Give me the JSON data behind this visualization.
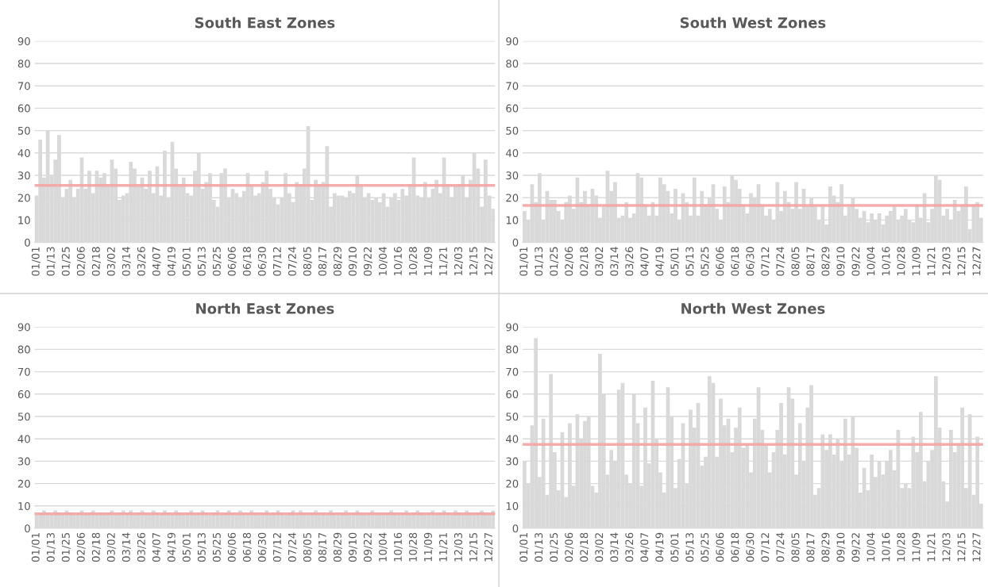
{
  "chart_data": [
    {
      "type": "bar",
      "title": "South East Zones",
      "color": "#d9d9d9",
      "ylim": [
        0,
        90
      ],
      "yticks": [
        0,
        10,
        20,
        30,
        40,
        50,
        60,
        70,
        80,
        90
      ],
      "grid": "y",
      "categories": [
        "01/01",
        null,
        null,
        null,
        "01/13",
        null,
        null,
        null,
        "01/25",
        null,
        null,
        null,
        "02/06",
        null,
        null,
        null,
        "02/18",
        null,
        null,
        null,
        "03/02",
        null,
        null,
        null,
        "03/14",
        null,
        null,
        null,
        "03/26",
        null,
        null,
        null,
        "04/07",
        null,
        null,
        null,
        "04/19",
        null,
        null,
        null,
        "05/01",
        null,
        null,
        null,
        "05/13",
        null,
        null,
        null,
        "05/25",
        null,
        null,
        null,
        "06/06",
        null,
        null,
        null,
        "06/18",
        null,
        null,
        null,
        "06/30",
        null,
        null,
        null,
        "07/12",
        null,
        null,
        null,
        "07/24",
        null,
        null,
        null,
        "08/05",
        null,
        null,
        null,
        "08/17",
        null,
        null,
        null,
        "08/29",
        null,
        null,
        null,
        "09/10",
        null,
        null,
        null,
        "09/22",
        null,
        null,
        null,
        "10/04",
        null,
        null,
        null,
        "10/16",
        null,
        null,
        null,
        "10/28",
        null,
        null,
        null,
        "11/09",
        null,
        null,
        null,
        "11/21",
        null,
        null,
        null,
        "12/03",
        null,
        null,
        null,
        "12/15",
        null,
        null,
        null,
        "12/27",
        null
      ],
      "values": [
        21,
        46,
        29,
        50,
        30,
        37,
        48,
        20,
        24,
        28,
        20,
        24,
        38,
        24,
        32,
        22,
        32,
        29,
        31,
        25,
        37,
        33,
        19,
        21,
        22,
        36,
        33,
        25,
        29,
        24,
        32,
        22,
        34,
        21,
        41,
        20,
        45,
        33,
        25,
        29,
        22,
        21,
        32,
        40,
        24,
        27,
        31,
        19,
        16,
        31,
        33,
        20,
        24,
        22,
        20,
        23,
        31,
        25,
        21,
        22,
        27,
        32,
        24,
        20,
        17,
        20,
        31,
        22,
        18,
        27,
        26,
        33,
        52,
        19,
        28,
        26,
        27,
        43,
        16,
        22,
        21,
        21,
        20,
        23,
        22,
        30,
        25,
        20,
        22,
        19,
        20,
        18,
        22,
        16,
        20,
        22,
        19,
        24,
        21,
        26,
        38,
        21,
        20,
        27,
        20,
        24,
        28,
        22,
        38,
        26,
        20,
        25,
        26,
        30,
        20,
        28,
        40,
        33,
        16,
        37,
        21,
        15
      ],
      "ref_lines": [
        {
          "axis": "y",
          "value": 25.5,
          "color": "#f4a3a3"
        }
      ]
    },
    {
      "type": "bar",
      "title": "South West Zones",
      "color": "#d9d9d9",
      "ylim": [
        0,
        90
      ],
      "yticks": [
        0,
        10,
        20,
        30,
        40,
        50,
        60,
        70,
        80,
        90
      ],
      "grid": "y",
      "categories": [
        "01/01",
        null,
        null,
        null,
        "01/13",
        null,
        null,
        null,
        "01/25",
        null,
        null,
        null,
        "02/06",
        null,
        null,
        null,
        "02/18",
        null,
        null,
        null,
        "03/02",
        null,
        null,
        null,
        "03/14",
        null,
        null,
        null,
        "03/26",
        null,
        null,
        null,
        "04/07",
        null,
        null,
        null,
        "04/19",
        null,
        null,
        null,
        "05/01",
        null,
        null,
        null,
        "05/13",
        null,
        null,
        null,
        "05/25",
        null,
        null,
        null,
        "06/06",
        null,
        null,
        null,
        "06/18",
        null,
        null,
        null,
        "06/30",
        null,
        null,
        null,
        "07/12",
        null,
        null,
        null,
        "07/24",
        null,
        null,
        null,
        "08/05",
        null,
        null,
        null,
        "08/17",
        null,
        null,
        null,
        "08/29",
        null,
        null,
        null,
        "09/10",
        null,
        null,
        null,
        "09/22",
        null,
        null,
        null,
        "10/04",
        null,
        null,
        null,
        "10/16",
        null,
        null,
        null,
        "10/28",
        null,
        null,
        null,
        "11/09",
        null,
        null,
        null,
        "11/21",
        null,
        null,
        null,
        "12/03",
        null,
        null,
        null,
        "12/15",
        null,
        null,
        null,
        "12/27",
        null
      ],
      "values": [
        14,
        10,
        26,
        18,
        31,
        10,
        23,
        19,
        19,
        14,
        10,
        18,
        21,
        15,
        29,
        18,
        23,
        17,
        24,
        21,
        11,
        16,
        32,
        23,
        27,
        11,
        12,
        18,
        11,
        13,
        31,
        29,
        17,
        12,
        18,
        12,
        29,
        26,
        23,
        13,
        24,
        10,
        22,
        18,
        12,
        29,
        12,
        23,
        17,
        20,
        26,
        15,
        10,
        25,
        18,
        30,
        28,
        24,
        17,
        13,
        22,
        20,
        26,
        17,
        12,
        15,
        10,
        27,
        14,
        23,
        18,
        15,
        27,
        15,
        24,
        16,
        20,
        16,
        10,
        16,
        8,
        25,
        21,
        18,
        26,
        12,
        16,
        20,
        15,
        11,
        14,
        9,
        13,
        10,
        13,
        8,
        12,
        14,
        16,
        10,
        12,
        15,
        10,
        9,
        17,
        11,
        22,
        9,
        15,
        30,
        28,
        12,
        15,
        10,
        19,
        14,
        17,
        25,
        6,
        17,
        18,
        11
      ],
      "ref_lines": [
        {
          "axis": "y",
          "value": 16.5,
          "color": "#f4a3a3"
        }
      ]
    },
    {
      "type": "bar",
      "title": "North East Zones",
      "color": "#d9d9d9",
      "ylim": [
        0,
        90
      ],
      "yticks": [
        0,
        10,
        20,
        30,
        40,
        50,
        60,
        70,
        80,
        90
      ],
      "grid": "y",
      "categories": [
        "01/01",
        null,
        null,
        null,
        "01/13",
        null,
        null,
        null,
        "01/25",
        null,
        null,
        null,
        "02/06",
        null,
        null,
        null,
        "02/18",
        null,
        null,
        null,
        "03/02",
        null,
        null,
        null,
        "03/14",
        null,
        null,
        null,
        "03/26",
        null,
        null,
        null,
        "04/07",
        null,
        null,
        null,
        "04/19",
        null,
        null,
        null,
        "05/01",
        null,
        null,
        null,
        "05/13",
        null,
        null,
        null,
        "05/25",
        null,
        null,
        null,
        "06/06",
        null,
        null,
        null,
        "06/18",
        null,
        null,
        null,
        "06/30",
        null,
        null,
        null,
        "07/12",
        null,
        null,
        null,
        "07/24",
        null,
        null,
        null,
        "08/05",
        null,
        null,
        null,
        "08/17",
        null,
        null,
        null,
        "08/29",
        null,
        null,
        null,
        "09/10",
        null,
        null,
        null,
        "09/22",
        null,
        null,
        null,
        "10/04",
        null,
        null,
        null,
        "10/16",
        null,
        null,
        null,
        "10/28",
        null,
        null,
        null,
        "11/09",
        null,
        null,
        null,
        "11/21",
        null,
        null,
        null,
        "12/03",
        null,
        null,
        null,
        "12/15",
        null,
        null,
        null,
        "12/27",
        null
      ],
      "values": [
        6,
        7,
        8,
        7,
        6,
        8,
        7,
        6,
        8,
        7,
        6,
        7,
        8,
        6,
        7,
        8,
        6,
        7,
        6,
        7,
        8,
        6,
        7,
        8,
        7,
        8,
        6,
        7,
        8,
        7,
        6,
        8,
        7,
        6,
        8,
        7,
        6,
        8,
        7,
        6,
        7,
        8,
        6,
        7,
        8,
        7,
        6,
        7,
        8,
        6,
        7,
        8,
        7,
        6,
        8,
        7,
        6,
        8,
        7,
        6,
        7,
        8,
        6,
        7,
        8,
        7,
        6,
        7,
        8,
        6,
        8,
        7,
        6,
        7,
        8,
        6,
        7,
        6,
        8,
        7,
        6,
        7,
        8,
        6,
        7,
        8,
        7,
        6,
        7,
        8,
        6,
        7,
        6,
        7,
        8,
        7,
        6,
        7,
        8,
        6,
        7,
        8,
        7,
        6,
        7,
        8,
        6,
        7,
        8,
        7,
        6,
        8,
        7,
        6,
        8,
        7,
        6,
        7,
        8,
        7,
        6,
        8
      ],
      "ref_lines": [
        {
          "axis": "y",
          "value": 6.5,
          "color": "#f4a3a3"
        }
      ]
    },
    {
      "type": "bar",
      "title": "North West Zones",
      "color": "#d9d9d9",
      "ylim": [
        0,
        90
      ],
      "yticks": [
        0,
        10,
        20,
        30,
        40,
        50,
        60,
        70,
        80,
        90
      ],
      "grid": "y",
      "categories": [
        "01/01",
        null,
        null,
        null,
        "01/13",
        null,
        null,
        null,
        "01/25",
        null,
        null,
        null,
        "02/06",
        null,
        null,
        null,
        "02/18",
        null,
        null,
        null,
        "03/02",
        null,
        null,
        null,
        "03/14",
        null,
        null,
        null,
        "03/26",
        null,
        null,
        null,
        "04/07",
        null,
        null,
        null,
        "04/19",
        null,
        null,
        null,
        "05/01",
        null,
        null,
        null,
        "05/13",
        null,
        null,
        null,
        "05/25",
        null,
        null,
        null,
        "06/06",
        null,
        null,
        null,
        "06/18",
        null,
        null,
        null,
        "06/30",
        null,
        null,
        null,
        "07/12",
        null,
        null,
        null,
        "07/24",
        null,
        null,
        null,
        "08/05",
        null,
        null,
        null,
        "08/17",
        null,
        null,
        null,
        "08/29",
        null,
        null,
        null,
        "09/10",
        null,
        null,
        null,
        "09/22",
        null,
        null,
        null,
        "10/04",
        null,
        null,
        null,
        "10/16",
        null,
        null,
        null,
        "10/28",
        null,
        null,
        null,
        "11/09",
        null,
        null,
        null,
        "11/21",
        null,
        null,
        null,
        "12/03",
        null,
        null,
        null,
        "12/15",
        null,
        null,
        null,
        "12/27",
        null
      ],
      "values": [
        30,
        20,
        46,
        85,
        23,
        49,
        15,
        69,
        34,
        17,
        43,
        14,
        47,
        19,
        51,
        40,
        48,
        50,
        19,
        16,
        78,
        60,
        24,
        35,
        30,
        62,
        65,
        24,
        20,
        60,
        47,
        19,
        54,
        29,
        66,
        40,
        25,
        16,
        63,
        50,
        18,
        31,
        47,
        20,
        53,
        45,
        56,
        28,
        32,
        68,
        65,
        32,
        58,
        46,
        49,
        34,
        45,
        54,
        36,
        38,
        25,
        49,
        63,
        44,
        37,
        25,
        34,
        44,
        56,
        33,
        63,
        58,
        24,
        47,
        30,
        54,
        64,
        15,
        18,
        42,
        35,
        42,
        33,
        40,
        30,
        49,
        33,
        50,
        36,
        16,
        27,
        17,
        33,
        23,
        30,
        24,
        30,
        35,
        26,
        44,
        18,
        20,
        18,
        41,
        34,
        52,
        21,
        30,
        35,
        68,
        45,
        21,
        12,
        44,
        34,
        38,
        54,
        18,
        51,
        15,
        41,
        11
      ],
      "ref_lines": [
        {
          "axis": "y",
          "value": 37.5,
          "color": "#f4a3a3"
        }
      ]
    }
  ]
}
